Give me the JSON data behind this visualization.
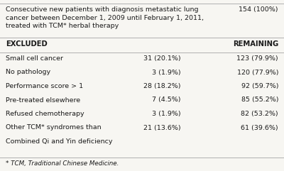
{
  "bg_color": "#f7f6f2",
  "header_text_line1": "Consecutive new patients with diagnosis metastatic lung",
  "header_text_line2": "cancer between December 1, 2009 until February 1, 2011,",
  "header_text_line3": "treated with TCM* herbal therapy",
  "header_value": "154 (100%)",
  "col_excluded": "EXCLUDED",
  "col_remaining": "REMAINING",
  "rows": [
    [
      "Small cell cancer",
      "31 (20.1%)",
      "123 (79.9%)"
    ],
    [
      "No pathology",
      "3 (1.9%)",
      "120 (77.9%)"
    ],
    [
      "Performance score > 1",
      "28 (18.2%)",
      "92 (59.7%)"
    ],
    [
      "Pre-treated elsewhere",
      "7 (4.5%)",
      "85 (55.2%)"
    ],
    [
      "Refused chemotherapy",
      "3 (1.9%)",
      "82 (53.2%)"
    ],
    [
      "Other TCM* syndromes than",
      "21 (13.6%)",
      "61 (39.6%)"
    ],
    [
      "Combined Qi and Yin deficiency",
      "",
      ""
    ]
  ],
  "footnote": "* TCM, Traditional Chinese Medicine.",
  "text_color": "#1a1a1a",
  "line_color": "#b0b0b0",
  "font_size": 6.8,
  "bold_size": 7.2
}
